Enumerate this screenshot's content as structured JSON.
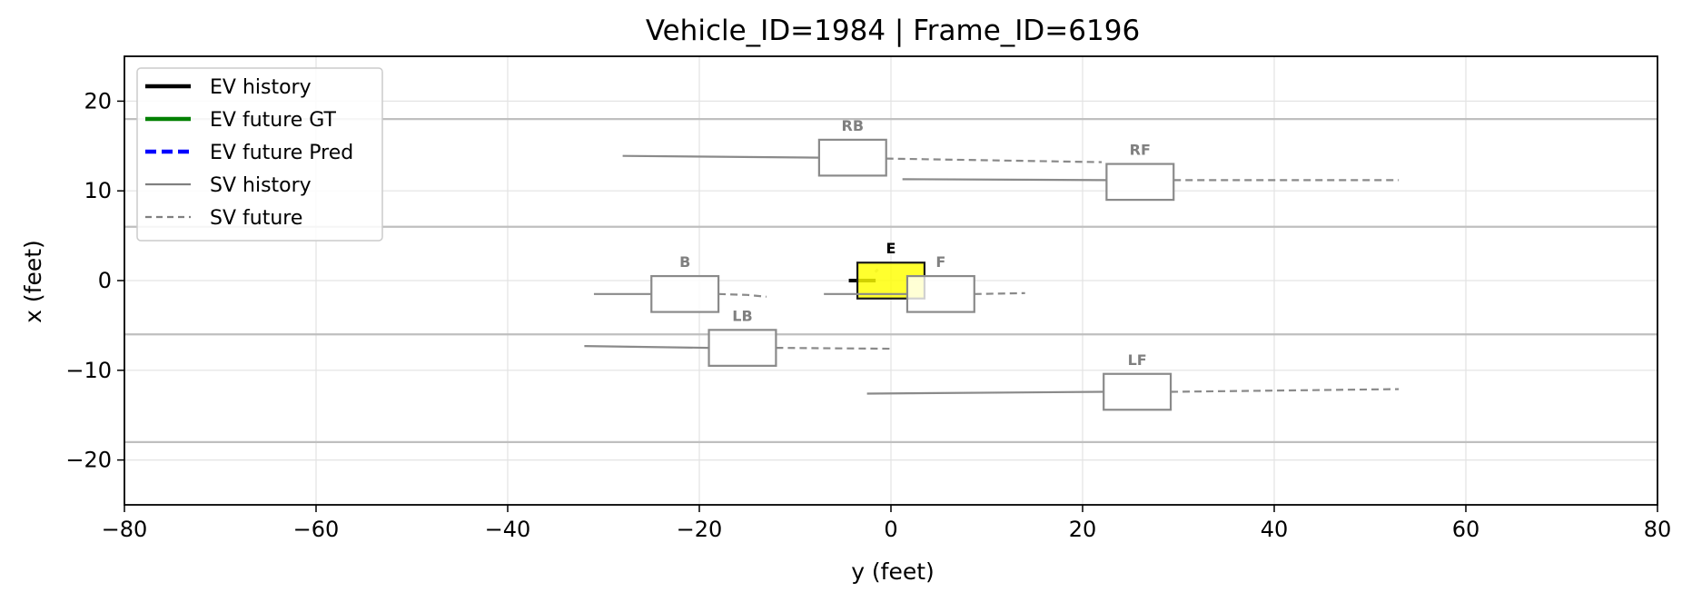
{
  "chart_data": {
    "type": "scatter",
    "title": "Vehicle_ID=1984  |  Frame_ID=6196",
    "xlabel": "y (feet)",
    "ylabel": "x (feet)",
    "xlim": [
      -80,
      80
    ],
    "ylim": [
      -25,
      25
    ],
    "xticks": [
      -80,
      -60,
      -40,
      -20,
      0,
      20,
      40,
      60,
      80
    ],
    "yticks": [
      -20,
      -10,
      0,
      10,
      20
    ],
    "xtick_labels": [
      "−80",
      "−60",
      "−40",
      "−20",
      "0",
      "20",
      "40",
      "60",
      "80"
    ],
    "ytick_labels": [
      "−20",
      "−10",
      "0",
      "10",
      "20"
    ],
    "grid": true,
    "legend_position": "top-left",
    "legend": [
      {
        "label": "EV history",
        "color": "#000000",
        "style": "solid",
        "weight": "thick"
      },
      {
        "label": "EV future GT",
        "color": "#008000",
        "style": "solid",
        "weight": "thick"
      },
      {
        "label": "EV future Pred",
        "color": "#0000ff",
        "style": "dashed",
        "weight": "thick"
      },
      {
        "label": "SV history",
        "color": "#808080",
        "style": "solid",
        "weight": "thin"
      },
      {
        "label": "SV future",
        "color": "#808080",
        "style": "dashed",
        "weight": "thin"
      }
    ],
    "lane_lines_x": [
      18,
      6,
      -6,
      -18
    ],
    "vehicles": [
      {
        "id": "E",
        "label": "E",
        "ego": true,
        "center": [
          0,
          0
        ],
        "length": 7,
        "width": 4,
        "history": [
          [
            -4.4,
            0
          ],
          [
            -1.6,
            0
          ]
        ],
        "future": [
          [
            -1.6,
            1.2
          ],
          [
            -1.4,
            1.0
          ]
        ]
      },
      {
        "id": "RB",
        "label": "RB",
        "center": [
          -4,
          13.7
        ],
        "length": 7,
        "width": 4,
        "history": [
          [
            -28,
            13.9
          ],
          [
            -7.5,
            13.7
          ]
        ],
        "future": [
          [
            -0.5,
            13.6
          ],
          [
            22,
            13.2
          ]
        ]
      },
      {
        "id": "RF",
        "label": "RF",
        "center": [
          26,
          11
        ],
        "length": 7,
        "width": 4,
        "history": [
          [
            1.2,
            11.3
          ],
          [
            22.5,
            11.2
          ]
        ],
        "future": [
          [
            29.5,
            11.2
          ],
          [
            53,
            11.2
          ]
        ]
      },
      {
        "id": "B",
        "label": "B",
        "center": [
          -21.5,
          -1.5
        ],
        "length": 7,
        "width": 4,
        "history": [
          [
            -31,
            -1.5
          ],
          [
            -25,
            -1.5
          ]
        ],
        "future": [
          [
            -18,
            -1.5
          ],
          [
            -15,
            -1.6
          ],
          [
            -13,
            -1.8
          ]
        ]
      },
      {
        "id": "F",
        "label": "F",
        "center": [
          5.2,
          -1.5
        ],
        "length": 7,
        "width": 4,
        "history": [
          [
            -7,
            -1.5
          ],
          [
            1.7,
            -1.5
          ]
        ],
        "future": [
          [
            8.7,
            -1.5
          ],
          [
            14,
            -1.4
          ]
        ]
      },
      {
        "id": "LB",
        "label": "LB",
        "center": [
          -15.5,
          -7.5
        ],
        "length": 7,
        "width": 4,
        "history": [
          [
            -32,
            -7.3
          ],
          [
            -19,
            -7.5
          ]
        ],
        "future": [
          [
            -12,
            -7.5
          ],
          [
            0,
            -7.6
          ]
        ]
      },
      {
        "id": "LF",
        "label": "LF",
        "center": [
          25.7,
          -12.4
        ],
        "length": 7,
        "width": 4,
        "history": [
          [
            -2.5,
            -12.6
          ],
          [
            22.2,
            -12.4
          ]
        ],
        "future": [
          [
            29.2,
            -12.4
          ],
          [
            53,
            -12.1
          ]
        ]
      }
    ]
  }
}
